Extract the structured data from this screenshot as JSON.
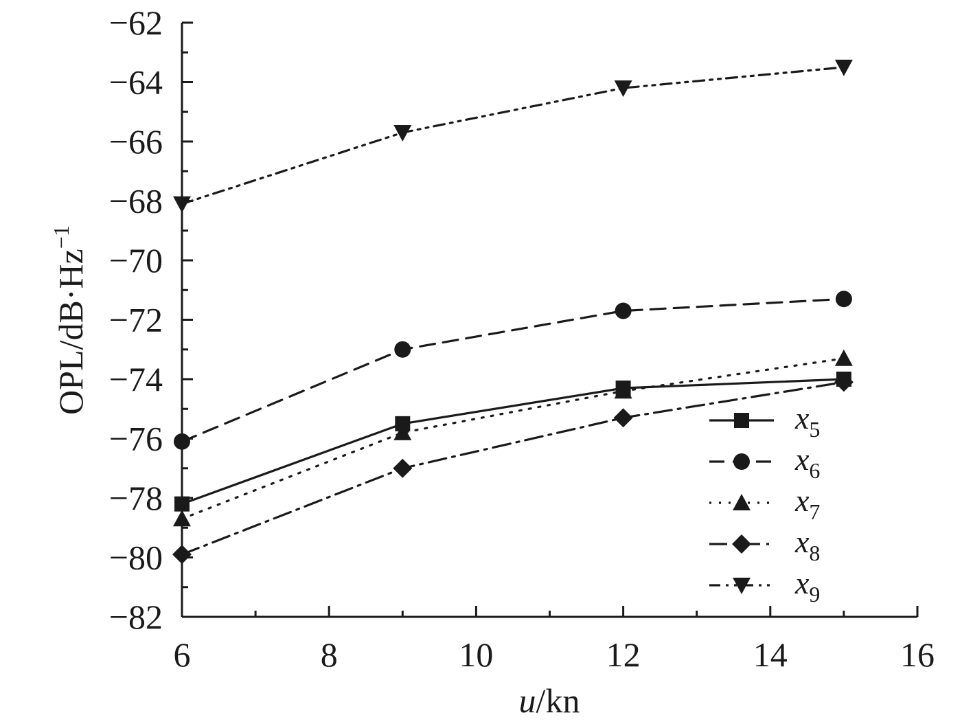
{
  "chart_data": {
    "type": "line",
    "title": "",
    "xlabel": {
      "italic": "u",
      "rest": "/kn"
    },
    "ylabel": {
      "main": "OPL/dB·Hz",
      "sup": "−1"
    },
    "xlim": [
      6,
      16
    ],
    "ylim": [
      -82,
      -62
    ],
    "xticks": [
      6,
      8,
      10,
      12,
      14,
      16
    ],
    "xtick_labels": [
      "6",
      "8",
      "10",
      "12",
      "14",
      "16"
    ],
    "yticks": [
      -62,
      -64,
      -66,
      -68,
      -70,
      -72,
      -74,
      -76,
      -78,
      -80,
      -82
    ],
    "ytick_labels": [
      "−62",
      "−64",
      "−66",
      "−68",
      "−70",
      "−72",
      "−74",
      "−76",
      "−78",
      "−80",
      "−82"
    ],
    "grid": false,
    "legend_position": "bottom-right",
    "x": [
      6,
      9,
      12,
      15
    ],
    "series": [
      {
        "name": "x",
        "sub": "5",
        "marker": "square",
        "dash": "solid",
        "values": [
          -78.2,
          -75.5,
          -74.3,
          -74.0
        ]
      },
      {
        "name": "x",
        "sub": "6",
        "marker": "circle",
        "dash": "dashed",
        "values": [
          -76.1,
          -73.0,
          -71.7,
          -71.3
        ]
      },
      {
        "name": "x",
        "sub": "7",
        "marker": "triangle-up",
        "dash": "dotted",
        "values": [
          -78.7,
          -75.8,
          -74.4,
          -73.3
        ]
      },
      {
        "name": "x",
        "sub": "8",
        "marker": "diamond",
        "dash": "longdash-dot",
        "values": [
          -79.9,
          -77.0,
          -75.3,
          -74.1
        ]
      },
      {
        "name": "x",
        "sub": "9",
        "marker": "triangle-down",
        "dash": "dash-dot-dot",
        "values": [
          -68.1,
          -65.7,
          -64.2,
          -63.5
        ]
      }
    ]
  }
}
